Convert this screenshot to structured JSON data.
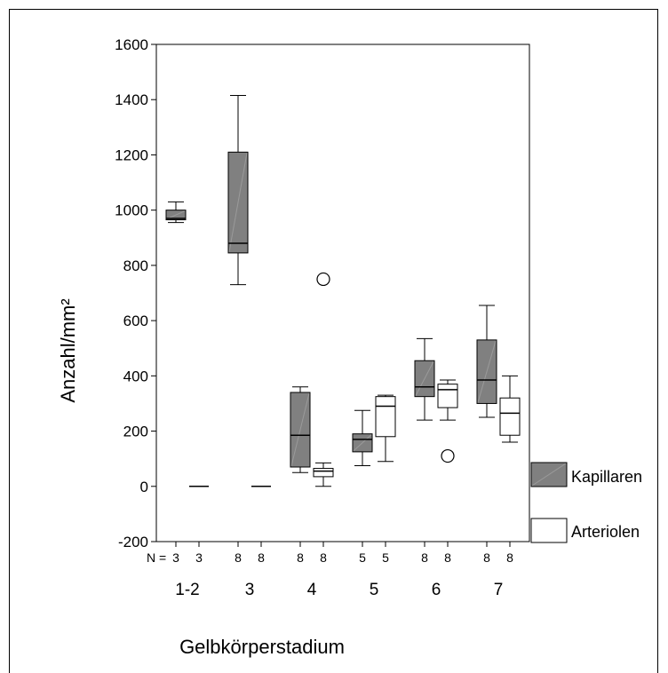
{
  "chart_data": {
    "type": "boxplot",
    "ylabel": "Anzahl/mm²",
    "xlabel": "Gelbkörperstadium",
    "ylim": [
      -200,
      1600
    ],
    "yticks": [
      -200,
      0,
      200,
      400,
      600,
      800,
      1000,
      1200,
      1400,
      1600
    ],
    "n_prefix": "N =",
    "legend_position": "right",
    "colors": {
      "kapillaren": "#808080",
      "arteriolen": "#ffffff",
      "outline": "#000000"
    },
    "categories": [
      "1-2",
      "3",
      "4",
      "5",
      "6",
      "7"
    ],
    "series": [
      {
        "name": "Kapillaren",
        "boxes": [
          {
            "n": "3",
            "min": 955,
            "q1": 965,
            "median": 970,
            "q3": 1000,
            "max": 1030,
            "outliers": []
          },
          {
            "n": "8",
            "min": 730,
            "q1": 845,
            "median": 880,
            "q3": 1210,
            "max": 1415,
            "outliers": []
          },
          {
            "n": "8",
            "min": 50,
            "q1": 70,
            "median": 185,
            "q3": 340,
            "max": 360,
            "outliers": []
          },
          {
            "n": "5",
            "min": 75,
            "q1": 125,
            "median": 170,
            "q3": 190,
            "max": 275,
            "outliers": []
          },
          {
            "n": "8",
            "min": 240,
            "q1": 325,
            "median": 360,
            "q3": 455,
            "max": 535,
            "outliers": []
          },
          {
            "n": "8",
            "min": 250,
            "q1": 300,
            "median": 385,
            "q3": 530,
            "max": 655,
            "outliers": []
          }
        ]
      },
      {
        "name": "Arteriolen",
        "boxes": [
          {
            "n": "3",
            "min": 0,
            "q1": 0,
            "median": 0,
            "q3": 0,
            "max": 0,
            "outliers": []
          },
          {
            "n": "8",
            "min": 0,
            "q1": 0,
            "median": 0,
            "q3": 0,
            "max": 0,
            "outliers": []
          },
          {
            "n": "8",
            "min": 0,
            "q1": 35,
            "median": 55,
            "q3": 65,
            "max": 85,
            "outliers": [
              750
            ]
          },
          {
            "n": "5",
            "min": 90,
            "q1": 180,
            "median": 290,
            "q3": 325,
            "max": 330,
            "outliers": []
          },
          {
            "n": "8",
            "min": 240,
            "q1": 285,
            "median": 350,
            "q3": 370,
            "max": 385,
            "outliers": [
              110
            ]
          },
          {
            "n": "8",
            "min": 160,
            "q1": 185,
            "median": 265,
            "q3": 320,
            "max": 400,
            "outliers": []
          }
        ]
      }
    ]
  }
}
